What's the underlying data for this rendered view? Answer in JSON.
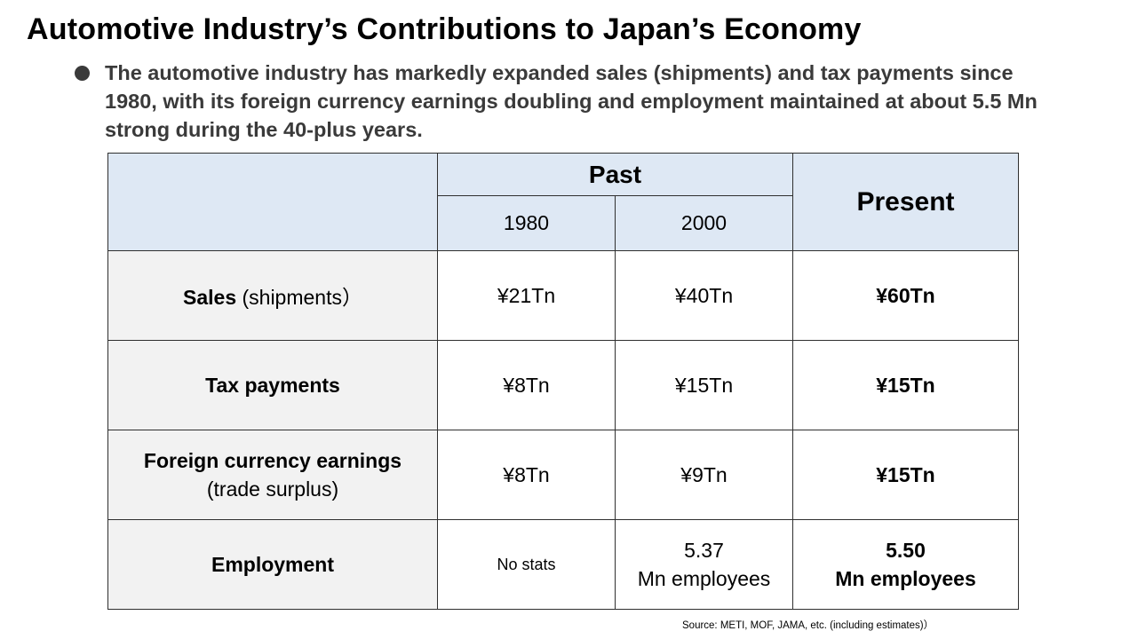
{
  "title": "Automotive Industry’s Contributions to Japan’s Economy",
  "bullet": "The automotive industry has markedly expanded sales (shipments) and tax payments since 1980, with its foreign currency earnings doubling and employment maintained at about 5.5 Mn strong during the 40-plus years.",
  "table": {
    "header": {
      "past": "Past",
      "present": "Present",
      "years": [
        "1980",
        "2000"
      ]
    },
    "rows": [
      {
        "label_bold": "Sales",
        "label_normal": " (shipments）",
        "v1980": "¥21Tn",
        "v2000": "¥40Tn",
        "present": "¥60Tn"
      },
      {
        "label_bold": "Tax payments",
        "v1980": "¥8Tn",
        "v2000": "¥15Tn",
        "present": "¥15Tn"
      },
      {
        "label_bold": "Foreign currency earnings",
        "label_normal": "(trade surplus)",
        "v1980": "¥8Tn",
        "v2000": "¥9Tn",
        "present": "¥15Tn"
      },
      {
        "label_bold": "Employment",
        "v1980": "No stats",
        "v2000_line1": "5.37",
        "v2000_line2": "Mn employees",
        "present_line1": "5.50",
        "present_line2": "Mn employees"
      }
    ]
  },
  "source": "Source: METI,  MOF,  JAMA,  etc. (including estimates)）"
}
